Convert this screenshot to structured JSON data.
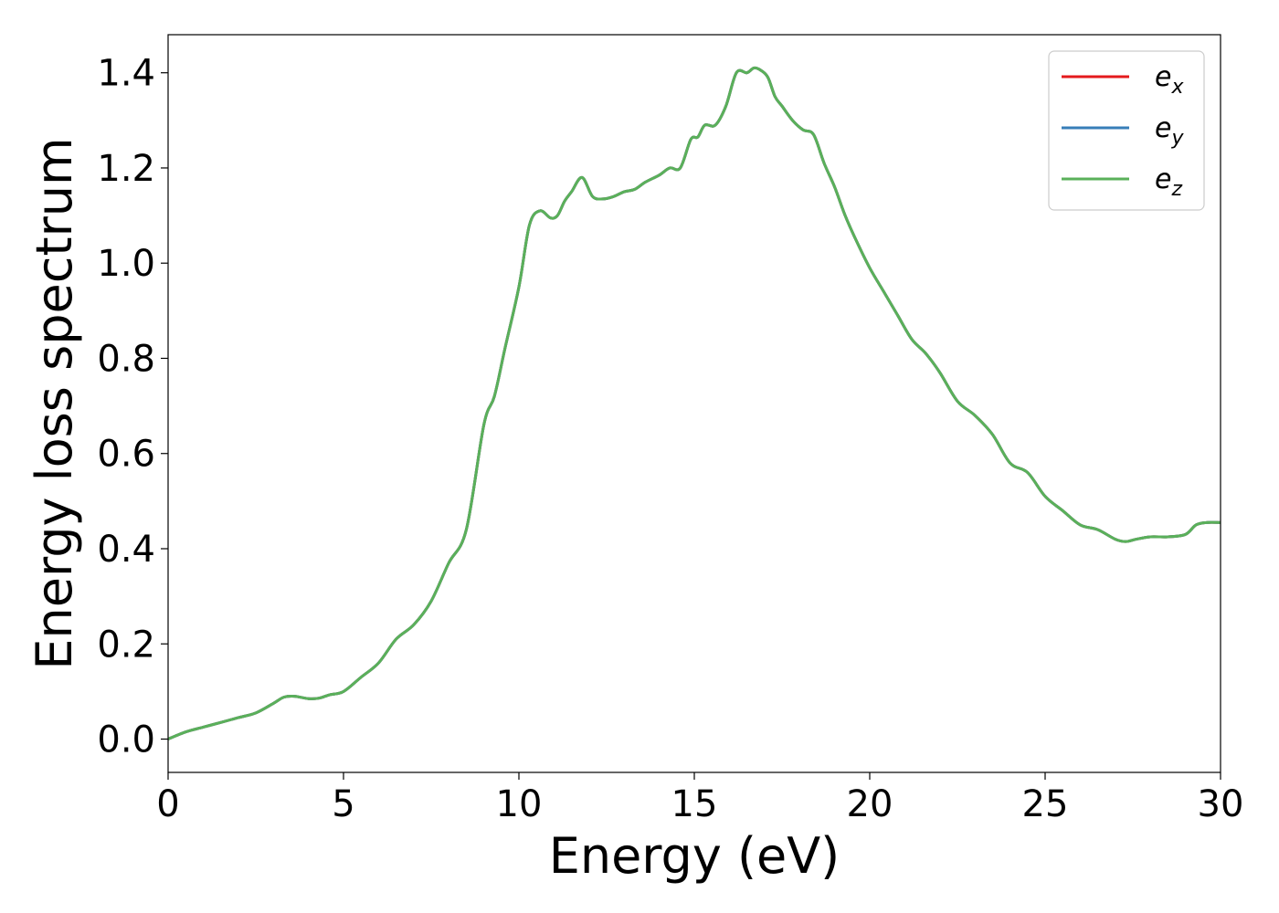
{
  "chart_data": {
    "type": "line",
    "xlabel": "Energy (eV)",
    "ylabel": "Energy loss spectrum",
    "xlim": [
      0,
      30
    ],
    "ylim": [
      -0.07,
      1.48
    ],
    "xticks": [
      "0",
      "5",
      "10",
      "15",
      "20",
      "25",
      "30"
    ],
    "yticks": [
      "0.0",
      "0.2",
      "0.4",
      "0.6",
      "0.8",
      "1.0",
      "1.2",
      "1.4"
    ],
    "grid": false,
    "legend_position": "top-right",
    "series": [
      {
        "name": "e",
        "subscript": "x",
        "color": "#e41a1c",
        "x": [
          0,
          0.5,
          1.0,
          1.5,
          2.0,
          2.5,
          3.0,
          3.3,
          3.6,
          4.0,
          4.3,
          4.6,
          5.0,
          5.5,
          6.0,
          6.5,
          7.0,
          7.5,
          8.0,
          8.5,
          9.0,
          9.3,
          9.6,
          10.0,
          10.3,
          10.6,
          10.9,
          11.1,
          11.3,
          11.5,
          11.8,
          12.1,
          12.4,
          12.7,
          13.0,
          13.3,
          13.6,
          14.0,
          14.3,
          14.6,
          14.9,
          15.1,
          15.3,
          15.6,
          15.9,
          16.2,
          16.5,
          16.7,
          16.9,
          17.1,
          17.3,
          17.5,
          17.8,
          18.1,
          18.4,
          18.7,
          19.0,
          19.3,
          19.6,
          20.0,
          20.4,
          20.8,
          21.2,
          21.6,
          22.0,
          22.5,
          23.0,
          23.5,
          24.0,
          24.5,
          25.0,
          25.5,
          26.0,
          26.5,
          27.0,
          27.3,
          27.6,
          28.0,
          28.5,
          29.0,
          29.3,
          29.6,
          30.0
        ],
        "y": [
          0.0,
          0.015,
          0.025,
          0.035,
          0.045,
          0.055,
          0.075,
          0.088,
          0.09,
          0.085,
          0.086,
          0.093,
          0.1,
          0.13,
          0.16,
          0.21,
          0.24,
          0.29,
          0.37,
          0.44,
          0.66,
          0.72,
          0.82,
          0.95,
          1.08,
          1.11,
          1.095,
          1.1,
          1.13,
          1.15,
          1.18,
          1.14,
          1.135,
          1.14,
          1.15,
          1.155,
          1.17,
          1.185,
          1.2,
          1.2,
          1.26,
          1.265,
          1.29,
          1.29,
          1.33,
          1.4,
          1.4,
          1.41,
          1.405,
          1.39,
          1.35,
          1.33,
          1.3,
          1.28,
          1.27,
          1.21,
          1.16,
          1.1,
          1.05,
          0.99,
          0.94,
          0.89,
          0.84,
          0.81,
          0.77,
          0.71,
          0.68,
          0.64,
          0.58,
          0.56,
          0.51,
          0.48,
          0.45,
          0.44,
          0.42,
          0.415,
          0.42,
          0.425,
          0.425,
          0.43,
          0.45,
          0.455,
          0.455
        ]
      },
      {
        "name": "e",
        "subscript": "y",
        "color": "#377eb8",
        "x": [
          0,
          0.5,
          1.0,
          1.5,
          2.0,
          2.5,
          3.0,
          3.3,
          3.6,
          4.0,
          4.3,
          4.6,
          5.0,
          5.5,
          6.0,
          6.5,
          7.0,
          7.5,
          8.0,
          8.5,
          9.0,
          9.3,
          9.6,
          10.0,
          10.3,
          10.6,
          10.9,
          11.1,
          11.3,
          11.5,
          11.8,
          12.1,
          12.4,
          12.7,
          13.0,
          13.3,
          13.6,
          14.0,
          14.3,
          14.6,
          14.9,
          15.1,
          15.3,
          15.6,
          15.9,
          16.2,
          16.5,
          16.7,
          16.9,
          17.1,
          17.3,
          17.5,
          17.8,
          18.1,
          18.4,
          18.7,
          19.0,
          19.3,
          19.6,
          20.0,
          20.4,
          20.8,
          21.2,
          21.6,
          22.0,
          22.5,
          23.0,
          23.5,
          24.0,
          24.5,
          25.0,
          25.5,
          26.0,
          26.5,
          27.0,
          27.3,
          27.6,
          28.0,
          28.5,
          29.0,
          29.3,
          29.6,
          30.0
        ],
        "y": [
          0.0,
          0.015,
          0.025,
          0.035,
          0.045,
          0.055,
          0.075,
          0.088,
          0.09,
          0.085,
          0.086,
          0.093,
          0.1,
          0.13,
          0.16,
          0.21,
          0.24,
          0.29,
          0.37,
          0.44,
          0.66,
          0.72,
          0.82,
          0.95,
          1.08,
          1.11,
          1.095,
          1.1,
          1.13,
          1.15,
          1.18,
          1.14,
          1.135,
          1.14,
          1.15,
          1.155,
          1.17,
          1.185,
          1.2,
          1.2,
          1.26,
          1.265,
          1.29,
          1.29,
          1.33,
          1.4,
          1.4,
          1.41,
          1.405,
          1.39,
          1.35,
          1.33,
          1.3,
          1.28,
          1.27,
          1.21,
          1.16,
          1.1,
          1.05,
          0.99,
          0.94,
          0.89,
          0.84,
          0.81,
          0.77,
          0.71,
          0.68,
          0.64,
          0.58,
          0.56,
          0.51,
          0.48,
          0.45,
          0.44,
          0.42,
          0.415,
          0.42,
          0.425,
          0.425,
          0.43,
          0.45,
          0.455,
          0.455
        ]
      },
      {
        "name": "e",
        "subscript": "z",
        "color": "#5ab05a",
        "x": [
          0,
          0.5,
          1.0,
          1.5,
          2.0,
          2.5,
          3.0,
          3.3,
          3.6,
          4.0,
          4.3,
          4.6,
          5.0,
          5.5,
          6.0,
          6.5,
          7.0,
          7.5,
          8.0,
          8.5,
          9.0,
          9.3,
          9.6,
          10.0,
          10.3,
          10.6,
          10.9,
          11.1,
          11.3,
          11.5,
          11.8,
          12.1,
          12.4,
          12.7,
          13.0,
          13.3,
          13.6,
          14.0,
          14.3,
          14.6,
          14.9,
          15.1,
          15.3,
          15.6,
          15.9,
          16.2,
          16.5,
          16.7,
          16.9,
          17.1,
          17.3,
          17.5,
          17.8,
          18.1,
          18.4,
          18.7,
          19.0,
          19.3,
          19.6,
          20.0,
          20.4,
          20.8,
          21.2,
          21.6,
          22.0,
          22.5,
          23.0,
          23.5,
          24.0,
          24.5,
          25.0,
          25.5,
          26.0,
          26.5,
          27.0,
          27.3,
          27.6,
          28.0,
          28.5,
          29.0,
          29.3,
          29.6,
          30.0
        ],
        "y": [
          0.0,
          0.015,
          0.025,
          0.035,
          0.045,
          0.055,
          0.075,
          0.088,
          0.09,
          0.085,
          0.086,
          0.093,
          0.1,
          0.13,
          0.16,
          0.21,
          0.24,
          0.29,
          0.37,
          0.44,
          0.66,
          0.72,
          0.82,
          0.95,
          1.08,
          1.11,
          1.095,
          1.1,
          1.13,
          1.15,
          1.18,
          1.14,
          1.135,
          1.14,
          1.15,
          1.155,
          1.17,
          1.185,
          1.2,
          1.2,
          1.26,
          1.265,
          1.29,
          1.29,
          1.33,
          1.4,
          1.4,
          1.41,
          1.405,
          1.39,
          1.35,
          1.33,
          1.3,
          1.28,
          1.27,
          1.21,
          1.16,
          1.1,
          1.05,
          0.99,
          0.94,
          0.89,
          0.84,
          0.81,
          0.77,
          0.71,
          0.68,
          0.64,
          0.58,
          0.56,
          0.51,
          0.48,
          0.45,
          0.44,
          0.42,
          0.415,
          0.42,
          0.425,
          0.425,
          0.43,
          0.45,
          0.455,
          0.455
        ]
      }
    ]
  }
}
